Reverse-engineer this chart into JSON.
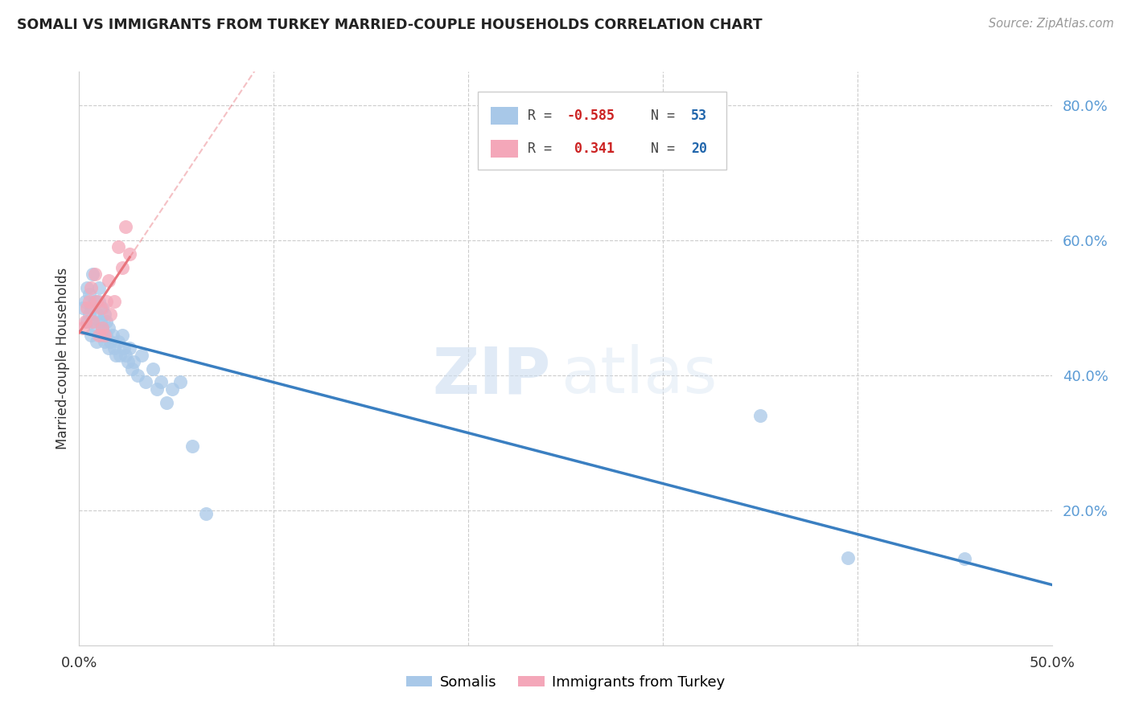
{
  "title": "SOMALI VS IMMIGRANTS FROM TURKEY MARRIED-COUPLE HOUSEHOLDS CORRELATION CHART",
  "source": "Source: ZipAtlas.com",
  "ylabel": "Married-couple Households",
  "xmin": 0.0,
  "xmax": 0.5,
  "ymin": 0.0,
  "ymax": 0.85,
  "color_blue": "#a8c8e8",
  "color_pink": "#f4a7b9",
  "color_blue_line": "#3a7fc1",
  "color_pink_line": "#e8747c",
  "somali_x": [
    0.002,
    0.003,
    0.004,
    0.004,
    0.005,
    0.005,
    0.006,
    0.006,
    0.007,
    0.007,
    0.008,
    0.008,
    0.009,
    0.009,
    0.01,
    0.01,
    0.011,
    0.011,
    0.012,
    0.012,
    0.013,
    0.013,
    0.014,
    0.014,
    0.015,
    0.015,
    0.016,
    0.017,
    0.018,
    0.019,
    0.02,
    0.021,
    0.022,
    0.023,
    0.024,
    0.025,
    0.026,
    0.027,
    0.028,
    0.03,
    0.032,
    0.034,
    0.038,
    0.04,
    0.042,
    0.045,
    0.048,
    0.052,
    0.058,
    0.065,
    0.35,
    0.395,
    0.455
  ],
  "somali_y": [
    0.5,
    0.51,
    0.48,
    0.53,
    0.49,
    0.52,
    0.46,
    0.5,
    0.55,
    0.48,
    0.51,
    0.47,
    0.49,
    0.45,
    0.51,
    0.53,
    0.48,
    0.46,
    0.5,
    0.47,
    0.49,
    0.45,
    0.48,
    0.46,
    0.47,
    0.44,
    0.45,
    0.46,
    0.44,
    0.43,
    0.45,
    0.43,
    0.46,
    0.44,
    0.43,
    0.42,
    0.44,
    0.41,
    0.42,
    0.4,
    0.43,
    0.39,
    0.41,
    0.38,
    0.39,
    0.36,
    0.38,
    0.39,
    0.295,
    0.195,
    0.34,
    0.13,
    0.128
  ],
  "turkey_x": [
    0.002,
    0.003,
    0.004,
    0.005,
    0.006,
    0.007,
    0.008,
    0.009,
    0.01,
    0.011,
    0.012,
    0.013,
    0.014,
    0.015,
    0.016,
    0.018,
    0.02,
    0.022,
    0.024,
    0.026
  ],
  "turkey_y": [
    0.47,
    0.48,
    0.5,
    0.51,
    0.53,
    0.48,
    0.55,
    0.51,
    0.46,
    0.5,
    0.47,
    0.46,
    0.51,
    0.54,
    0.49,
    0.51,
    0.59,
    0.56,
    0.62,
    0.58
  ],
  "legend_label_blue": "Somalis",
  "legend_label_pink": "Immigrants from Turkey",
  "watermark_zip": "ZIP",
  "watermark_atlas": "atlas"
}
